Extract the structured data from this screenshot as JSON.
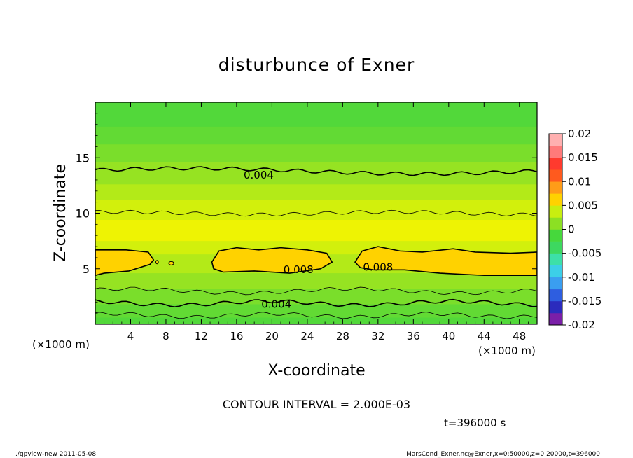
{
  "chart_data": {
    "type": "heatmap",
    "title": "disturbunce of Exner",
    "xlabel": "X-coordinate",
    "ylabel": "Z-coordinate",
    "x_unit_left": "(×1000 m)",
    "x_unit_right": "(×1000 m)",
    "xlim": [
      0,
      50
    ],
    "ylim": [
      0,
      20
    ],
    "x_ticks": [
      4,
      8,
      12,
      16,
      20,
      24,
      28,
      32,
      36,
      40,
      44,
      48
    ],
    "x_tick_labels": [
      "4",
      "8",
      "12",
      "16",
      "20",
      "24",
      "28",
      "32",
      "36",
      "40",
      "44",
      "48"
    ],
    "y_ticks": [
      5,
      10,
      15
    ],
    "y_tick_labels": [
      "5",
      "10",
      "15"
    ],
    "colorbar": {
      "range": [
        -0.02,
        0.02
      ],
      "tick_labels": [
        "0.02",
        "0.015",
        "0.01",
        "0.005",
        "0",
        "-0.005",
        "-0.01",
        "-0.015",
        "-0.02"
      ],
      "colors": [
        "#7a1fa8",
        "#2b2bbd",
        "#2e5ee0",
        "#3a9ef0",
        "#3ccfe8",
        "#3de0a8",
        "#3dd860",
        "#46d83c",
        "#8ce023",
        "#c8ee10",
        "#ffd200",
        "#ff9c18",
        "#ff5a1e",
        "#ff3a2e",
        "#ff7a7a",
        "#ffb0b0"
      ]
    },
    "contour_interval_text": "CONTOUR INTERVAL = 2.000E-03",
    "contour_labels": [
      {
        "text": "0.004",
        "x": 18.5,
        "z": 13.5
      },
      {
        "text": "0.008",
        "x": 23.0,
        "z": 5.0
      },
      {
        "text": "0.008",
        "x": 32.0,
        "z": 5.2
      },
      {
        "text": "0.004",
        "x": 20.5,
        "z": 1.85
      }
    ],
    "contour_levels": [
      0.002,
      0.004,
      0.006,
      0.008
    ],
    "time_label": "t=396000 s",
    "footer_left": "./gpview-new   2011-05-08",
    "footer_right": "MarsCond_Exner.nc@Exner,x=0:50000,z=0:20000,t=396000"
  }
}
